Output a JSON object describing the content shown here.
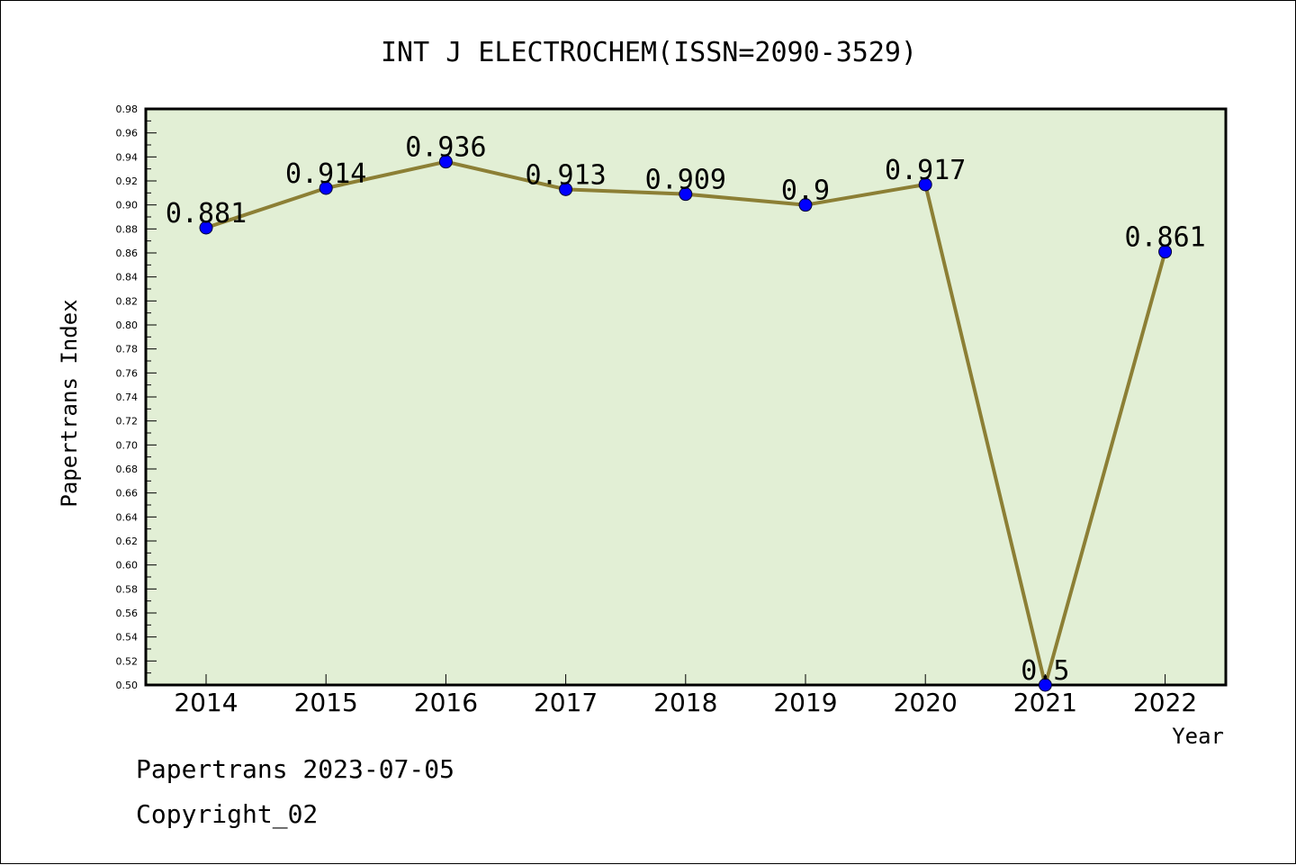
{
  "chart_data": {
    "type": "line",
    "title": "INT J ELECTROCHEM(ISSN=2090-3529)",
    "xlabel": "Year",
    "ylabel": "Papertrans Index",
    "categories": [
      "2014",
      "2015",
      "2016",
      "2017",
      "2018",
      "2019",
      "2020",
      "2021",
      "2022"
    ],
    "values": [
      0.881,
      0.914,
      0.936,
      0.913,
      0.909,
      0.9,
      0.917,
      0.5,
      0.861
    ],
    "data_labels": [
      "0.881",
      "0.914",
      "0.936",
      "0.913",
      "0.909",
      "0.9",
      "0.917",
      "0.5",
      "0.861"
    ],
    "ylim": [
      0.5,
      0.98
    ],
    "yticks": [
      "0.50",
      "0.52",
      "0.54",
      "0.56",
      "0.58",
      "0.60",
      "0.62",
      "0.64",
      "0.66",
      "0.68",
      "0.70",
      "0.72",
      "0.74",
      "0.76",
      "0.78",
      "0.80",
      "0.82",
      "0.84",
      "0.86",
      "0.88",
      "0.90",
      "0.92",
      "0.94",
      "0.96",
      "0.98"
    ],
    "grid": false,
    "colors": {
      "plot_background": "#e2efd5",
      "line": "#8c7f35",
      "marker": "#0000ff"
    }
  },
  "footer": {
    "line1": "Papertrans 2023-07-05",
    "line2": "Copyright_02"
  }
}
